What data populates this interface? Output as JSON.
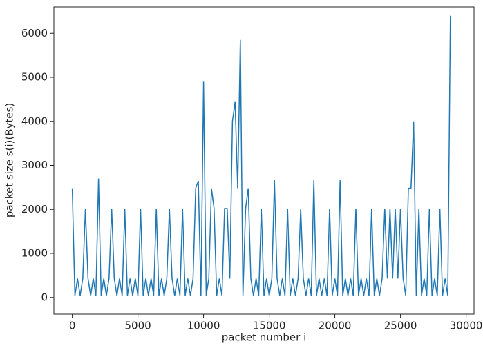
{
  "chart_data": {
    "type": "line",
    "xlabel": "packet number i",
    "ylabel": "packet size s(i)(Bytes)",
    "color": "#1f77b4",
    "x": [
      0,
      200,
      400,
      600,
      800,
      1000,
      1200,
      1400,
      1600,
      1800,
      2000,
      2200,
      2400,
      2600,
      2800,
      3000,
      3200,
      3400,
      3600,
      3800,
      4000,
      4200,
      4400,
      4600,
      4800,
      5000,
      5200,
      5400,
      5600,
      5800,
      6000,
      6200,
      6400,
      6600,
      6800,
      7000,
      7200,
      7400,
      7600,
      7800,
      8000,
      8200,
      8400,
      8600,
      8800,
      9000,
      9200,
      9400,
      9600,
      9800,
      10000,
      10200,
      10400,
      10600,
      10800,
      11000,
      11200,
      11400,
      11600,
      11800,
      12000,
      12200,
      12400,
      12600,
      12800,
      13000,
      13200,
      13400,
      13600,
      13800,
      14000,
      14200,
      14400,
      14600,
      14800,
      15000,
      15200,
      15400,
      15600,
      15800,
      16000,
      16200,
      16400,
      16600,
      16800,
      17000,
      17200,
      17400,
      17600,
      17800,
      18000,
      18200,
      18400,
      18600,
      18800,
      19000,
      19200,
      19400,
      19600,
      19800,
      20000,
      20200,
      20400,
      20600,
      20800,
      21000,
      21200,
      21400,
      21600,
      21800,
      22000,
      22200,
      22400,
      22600,
      22800,
      23000,
      23200,
      23400,
      23600,
      23800,
      24000,
      24200,
      24400,
      24600,
      24800,
      25000,
      25200,
      25400,
      25600,
      25800,
      26000,
      26200,
      26400,
      26600,
      26800,
      27000,
      27200,
      27400,
      27600,
      27800,
      28000,
      28200,
      28400,
      28600,
      28800
    ],
    "values": [
      2480,
      40,
      430,
      40,
      430,
      2020,
      430,
      40,
      430,
      40,
      2700,
      40,
      430,
      40,
      430,
      2020,
      430,
      40,
      430,
      40,
      2020,
      40,
      430,
      40,
      430,
      40,
      2020,
      40,
      430,
      40,
      430,
      40,
      2020,
      40,
      430,
      40,
      430,
      2020,
      430,
      40,
      430,
      40,
      2020,
      40,
      430,
      40,
      430,
      2480,
      2650,
      40,
      4900,
      40,
      430,
      2480,
      2020,
      40,
      430,
      40,
      2020,
      2020,
      430,
      4000,
      4440,
      2480,
      5850,
      40,
      2020,
      2480,
      430,
      40,
      430,
      40,
      2020,
      40,
      430,
      40,
      430,
      2660,
      430,
      40,
      430,
      40,
      2020,
      40,
      430,
      40,
      430,
      2020,
      430,
      40,
      430,
      40,
      2660,
      40,
      430,
      40,
      430,
      40,
      2020,
      40,
      430,
      40,
      2660,
      40,
      430,
      40,
      430,
      40,
      2020,
      40,
      430,
      40,
      430,
      40,
      2020,
      40,
      430,
      40,
      430,
      2020,
      430,
      2020,
      430,
      2020,
      430,
      2020,
      430,
      40,
      2480,
      2480,
      4000,
      40,
      2020,
      40,
      430,
      40,
      2020,
      40,
      430,
      40,
      2020,
      40,
      430,
      40,
      6400
    ],
    "xlim": [
      -1400,
      30600
    ],
    "ylim": [
      -380,
      6600
    ],
    "xticks": [
      0,
      5000,
      10000,
      15000,
      20000,
      25000,
      30000
    ],
    "yticks": [
      0,
      1000,
      2000,
      3000,
      4000,
      5000,
      6000
    ]
  }
}
